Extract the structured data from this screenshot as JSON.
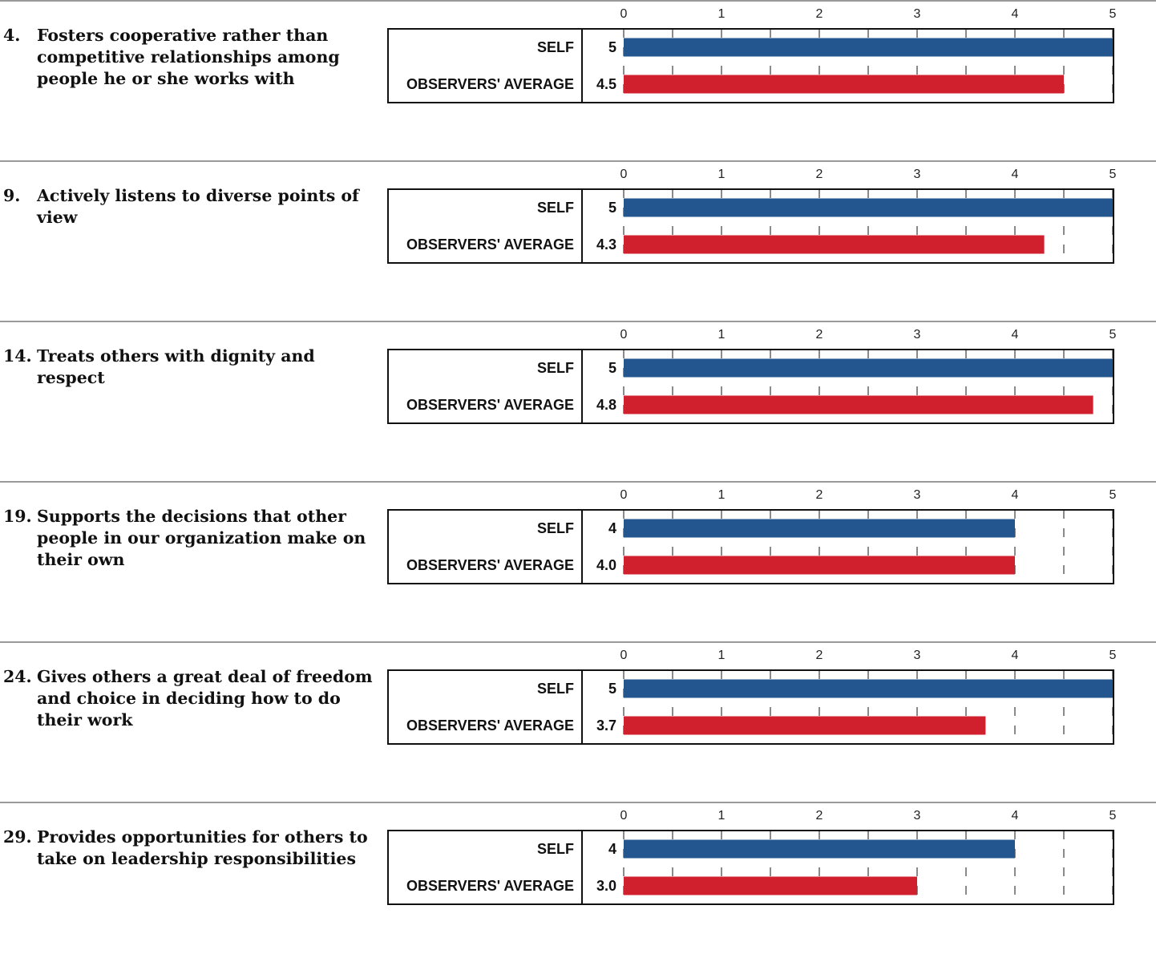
{
  "legend": {
    "self_label": "SELF",
    "observers_label": "OBSERVERS' AVERAGE"
  },
  "colors": {
    "self": "#23568f",
    "observers": "#d0202e",
    "frame": "#111111",
    "rule": "#9a9a9a",
    "gridline": "#8a8a8a"
  },
  "chart_data": [
    {
      "type": "bar",
      "item_number": "4.",
      "statement": "Fosters cooperative rather than competitive relationships among people he or she works with",
      "categories": [
        "SELF",
        "OBSERVERS' AVERAGE"
      ],
      "values": [
        5,
        4.5
      ],
      "value_labels": [
        "5",
        "4.5"
      ],
      "xlim": [
        0,
        5
      ],
      "x_ticks": [
        0,
        1,
        2,
        3,
        4,
        5
      ]
    },
    {
      "type": "bar",
      "item_number": "9.",
      "statement": "Actively listens to diverse points of view",
      "categories": [
        "SELF",
        "OBSERVERS' AVERAGE"
      ],
      "values": [
        5,
        4.3
      ],
      "value_labels": [
        "5",
        "4.3"
      ],
      "xlim": [
        0,
        5
      ],
      "x_ticks": [
        0,
        1,
        2,
        3,
        4,
        5
      ]
    },
    {
      "type": "bar",
      "item_number": "14.",
      "statement": "Treats others with dignity and respect",
      "categories": [
        "SELF",
        "OBSERVERS' AVERAGE"
      ],
      "values": [
        5,
        4.8
      ],
      "value_labels": [
        "5",
        "4.8"
      ],
      "xlim": [
        0,
        5
      ],
      "x_ticks": [
        0,
        1,
        2,
        3,
        4,
        5
      ]
    },
    {
      "type": "bar",
      "item_number": "19.",
      "statement": "Supports the decisions that other people in our organization make on their own",
      "categories": [
        "SELF",
        "OBSERVERS' AVERAGE"
      ],
      "values": [
        4,
        4.0
      ],
      "value_labels": [
        "4",
        "4.0"
      ],
      "xlim": [
        0,
        5
      ],
      "x_ticks": [
        0,
        1,
        2,
        3,
        4,
        5
      ]
    },
    {
      "type": "bar",
      "item_number": "24.",
      "statement": "Gives others a great deal of freedom and choice in deciding how to do their work",
      "categories": [
        "SELF",
        "OBSERVERS' AVERAGE"
      ],
      "values": [
        5,
        3.7
      ],
      "value_labels": [
        "5",
        "3.7"
      ],
      "xlim": [
        0,
        5
      ],
      "x_ticks": [
        0,
        1,
        2,
        3,
        4,
        5
      ]
    },
    {
      "type": "bar",
      "item_number": "29.",
      "statement": "Provides opportunities for others to take on leadership responsibilities",
      "categories": [
        "SELF",
        "OBSERVERS' AVERAGE"
      ],
      "values": [
        4,
        3.0
      ],
      "value_labels": [
        "4",
        "3.0"
      ],
      "xlim": [
        0,
        5
      ],
      "x_ticks": [
        0,
        1,
        2,
        3,
        4,
        5
      ]
    }
  ]
}
